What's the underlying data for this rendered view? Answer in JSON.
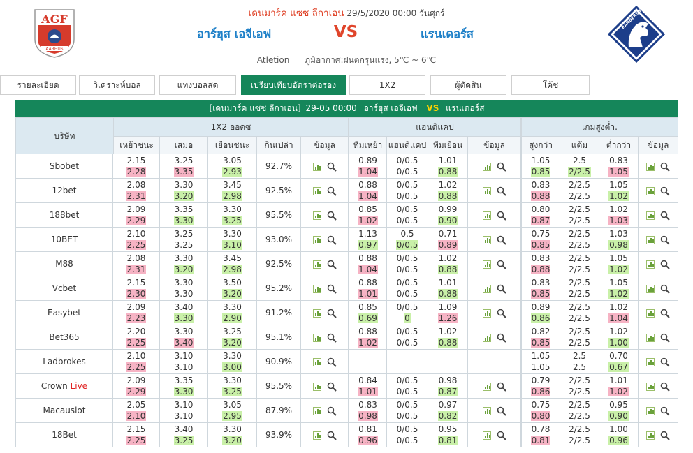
{
  "header": {
    "league": "เดนมาร์ค แซซ ลีกาเอน",
    "datetime": "29/5/2020 00:00 วันศุกร์",
    "home_team": "อาร์ฮุส เอจีเอฟ",
    "vs": "VS",
    "away_team": "แรนเดอร์ส",
    "venue": "Atletion",
    "weather": "ภูมิอากาศ:ฝนตกรุนแรง, 5℃ ~ 6℃",
    "home_logo_text": "AGF",
    "away_logo_text": "RANDERS FC"
  },
  "tabs": [
    {
      "label": "รายละเอียด"
    },
    {
      "label": "วิเคราะห์บอล"
    },
    {
      "label": "แทงบอลสด"
    },
    {
      "label": "เปรียบเทียบอัตราต่อรอง",
      "active": true
    },
    {
      "label": "1X2"
    },
    {
      "label": "ผู้ตัดสิน"
    },
    {
      "label": "โค้ช"
    }
  ],
  "match_bar": {
    "league": "[เดนมาร์ค แซซ ลีกาเอน]",
    "datetime": "29-05 00:00",
    "home": "อาร์ฮุส เอจีเอฟ",
    "vs": "VS",
    "away": "แรนเดอร์ส"
  },
  "headers": {
    "company": "บริษัท",
    "x12": "1X2 ออดซ",
    "handicap": "แฮนดิแคป",
    "overunder": "เกมสูงต่ำ.",
    "x12_cols": [
      "เหย้าชนะ",
      "เสมอ",
      "เยือนชนะ",
      "กินเปล่า",
      "ข้อมูล"
    ],
    "hdp_cols": [
      "ทีมเหย้า",
      "แฮนดิแคป",
      "ทีมเยือน",
      "ข้อมูล"
    ],
    "ou_cols": [
      "สูงกว่า",
      "แต้ม",
      "ต่ำกว่า",
      "ข้อมูล"
    ]
  },
  "colors": {
    "accent": "#15865a",
    "up": "#f6b3c4",
    "down": "#c9f0a8",
    "live": "#e02020"
  },
  "icons": [
    "chart-icon",
    "search-icon"
  ],
  "rows": [
    {
      "company": "Sbobet",
      "live": "",
      "x12": [
        [
          "2.15",
          "2.28",
          "up"
        ],
        [
          "3.25",
          "3.35",
          "up"
        ],
        [
          "3.05",
          "2.93",
          "down"
        ]
      ],
      "payout": "92.7%",
      "hdp": [
        [
          "0.89",
          "1.04",
          "up"
        ],
        [
          "0/0.5",
          "0/0.5",
          ""
        ],
        [
          "1.01",
          "0.88",
          "down"
        ]
      ],
      "ou": [
        [
          "1.05",
          "0.85",
          "down"
        ],
        [
          "2.5",
          "2/2.5",
          "down"
        ],
        [
          "0.83",
          "1.05",
          "up"
        ]
      ]
    },
    {
      "company": "12bet",
      "live": "",
      "x12": [
        [
          "2.08",
          "2.31",
          "up"
        ],
        [
          "3.30",
          "3.20",
          "down"
        ],
        [
          "3.45",
          "2.98",
          "down"
        ]
      ],
      "payout": "92.5%",
      "hdp": [
        [
          "0.88",
          "1.04",
          "up"
        ],
        [
          "0/0.5",
          "0/0.5",
          ""
        ],
        [
          "1.02",
          "0.88",
          "down"
        ]
      ],
      "ou": [
        [
          "0.83",
          "0.88",
          "up"
        ],
        [
          "2/2.5",
          "2/2.5",
          ""
        ],
        [
          "1.05",
          "1.02",
          "down"
        ]
      ]
    },
    {
      "company": "188bet",
      "live": "",
      "x12": [
        [
          "2.09",
          "2.29",
          "up"
        ],
        [
          "3.35",
          "3.30",
          "down"
        ],
        [
          "3.30",
          "3.25",
          "down"
        ]
      ],
      "payout": "95.5%",
      "hdp": [
        [
          "0.85",
          "1.02",
          "up"
        ],
        [
          "0/0.5",
          "0/0.5",
          ""
        ],
        [
          "0.99",
          "0.90",
          "down"
        ]
      ],
      "ou": [
        [
          "0.80",
          "0.87",
          "up"
        ],
        [
          "2/2.5",
          "2/2.5",
          ""
        ],
        [
          "1.02",
          "1.03",
          "up"
        ]
      ]
    },
    {
      "company": "10BET",
      "live": "",
      "x12": [
        [
          "2.10",
          "2.25",
          "up"
        ],
        [
          "3.25",
          "3.25",
          ""
        ],
        [
          "3.30",
          "3.10",
          "down"
        ]
      ],
      "payout": "93.0%",
      "hdp": [
        [
          "1.13",
          "0.97",
          "down"
        ],
        [
          "0.5",
          "0/0.5",
          "down"
        ],
        [
          "0.71",
          "0.89",
          "up"
        ]
      ],
      "ou": [
        [
          "0.75",
          "0.85",
          "up"
        ],
        [
          "2/2.5",
          "2/2.5",
          ""
        ],
        [
          "1.03",
          "0.98",
          "down"
        ]
      ]
    },
    {
      "company": "M88",
      "live": "",
      "x12": [
        [
          "2.08",
          "2.31",
          "up"
        ],
        [
          "3.30",
          "3.20",
          "down"
        ],
        [
          "3.45",
          "2.98",
          "down"
        ]
      ],
      "payout": "92.5%",
      "hdp": [
        [
          "0.88",
          "1.04",
          "up"
        ],
        [
          "0/0.5",
          "0/0.5",
          ""
        ],
        [
          "1.02",
          "0.88",
          "down"
        ]
      ],
      "ou": [
        [
          "0.83",
          "0.88",
          "up"
        ],
        [
          "2/2.5",
          "2/2.5",
          ""
        ],
        [
          "1.05",
          "1.02",
          "down"
        ]
      ]
    },
    {
      "company": "Vcbet",
      "live": "",
      "x12": [
        [
          "2.15",
          "2.30",
          "up"
        ],
        [
          "3.30",
          "3.30",
          ""
        ],
        [
          "3.50",
          "3.20",
          "down"
        ]
      ],
      "payout": "95.2%",
      "hdp": [
        [
          "0.88",
          "1.01",
          "up"
        ],
        [
          "0/0.5",
          "0/0.5",
          ""
        ],
        [
          "1.01",
          "0.88",
          "down"
        ]
      ],
      "ou": [
        [
          "0.83",
          "0.85",
          "up"
        ],
        [
          "2/2.5",
          "2/2.5",
          ""
        ],
        [
          "1.05",
          "1.02",
          "down"
        ]
      ]
    },
    {
      "company": "Easybet",
      "live": "",
      "x12": [
        [
          "2.09",
          "2.23",
          "up"
        ],
        [
          "3.40",
          "3.30",
          "down"
        ],
        [
          "3.30",
          "2.90",
          "down"
        ]
      ],
      "payout": "91.2%",
      "hdp": [
        [
          "0.85",
          "0.69",
          "down"
        ],
        [
          "0/0.5",
          "0",
          "down"
        ],
        [
          "1.09",
          "1.26",
          "up"
        ]
      ],
      "ou": [
        [
          "0.89",
          "0.86",
          "down"
        ],
        [
          "2/2.5",
          "2/2.5",
          ""
        ],
        [
          "1.02",
          "1.04",
          "up"
        ]
      ]
    },
    {
      "company": "Bet365",
      "live": "",
      "x12": [
        [
          "2.20",
          "2.25",
          "up"
        ],
        [
          "3.30",
          "3.40",
          "up"
        ],
        [
          "3.25",
          "3.20",
          "down"
        ]
      ],
      "payout": "95.1%",
      "hdp": [
        [
          "0.88",
          "1.02",
          "up"
        ],
        [
          "0/0.5",
          "0/0.5",
          ""
        ],
        [
          "1.02",
          "0.88",
          "down"
        ]
      ],
      "ou": [
        [
          "0.82",
          "0.85",
          "up"
        ],
        [
          "2/2.5",
          "2/2.5",
          ""
        ],
        [
          "1.02",
          "1.00",
          "down"
        ]
      ]
    },
    {
      "company": "Ladbrokes",
      "live": "",
      "x12": [
        [
          "2.10",
          "2.25",
          "up"
        ],
        [
          "3.10",
          "3.10",
          ""
        ],
        [
          "3.30",
          "3.00",
          "down"
        ]
      ],
      "payout": "90.9%",
      "hdp": [
        [
          "",
          "",
          ""
        ],
        [
          "",
          "",
          ""
        ],
        [
          "",
          "",
          ""
        ]
      ],
      "ou": [
        [
          "1.05",
          "1.05",
          ""
        ],
        [
          "2.5",
          "2.5",
          ""
        ],
        [
          "0.70",
          "0.67",
          "down"
        ]
      ]
    },
    {
      "company": "Crown",
      "live": "Live",
      "x12": [
        [
          "2.09",
          "2.29",
          "up"
        ],
        [
          "3.35",
          "3.30",
          "down"
        ],
        [
          "3.30",
          "3.25",
          "down"
        ]
      ],
      "payout": "95.5%",
      "hdp": [
        [
          "0.84",
          "1.01",
          "up"
        ],
        [
          "0/0.5",
          "0/0.5",
          ""
        ],
        [
          "0.98",
          "0.87",
          "down"
        ]
      ],
      "ou": [
        [
          "0.79",
          "0.86",
          "up"
        ],
        [
          "2/2.5",
          "2/2.5",
          ""
        ],
        [
          "1.01",
          "1.02",
          "up"
        ]
      ]
    },
    {
      "company": "Macauslot",
      "live": "",
      "x12": [
        [
          "2.05",
          "2.10",
          "up"
        ],
        [
          "3.10",
          "3.10",
          ""
        ],
        [
          "3.05",
          "2.95",
          "down"
        ]
      ],
      "payout": "87.9%",
      "hdp": [
        [
          "0.83",
          "0.98",
          "up"
        ],
        [
          "0/0.5",
          "0/0.5",
          ""
        ],
        [
          "0.97",
          "0.82",
          "down"
        ]
      ],
      "ou": [
        [
          "0.75",
          "0.80",
          "up"
        ],
        [
          "2/2.5",
          "2/2.5",
          ""
        ],
        [
          "0.95",
          "0.90",
          "down"
        ]
      ]
    },
    {
      "company": "18Bet",
      "live": "",
      "x12": [
        [
          "2.15",
          "2.25",
          "up"
        ],
        [
          "3.40",
          "3.25",
          "down"
        ],
        [
          "3.30",
          "3.20",
          "down"
        ]
      ],
      "payout": "93.9%",
      "hdp": [
        [
          "0.81",
          "0.96",
          "up"
        ],
        [
          "0/0.5",
          "0/0.5",
          ""
        ],
        [
          "0.95",
          "0.81",
          "down"
        ]
      ],
      "ou": [
        [
          "0.78",
          "0.81",
          "up"
        ],
        [
          "2/2.5",
          "2/2.5",
          ""
        ],
        [
          "1.00",
          "0.96",
          "down"
        ]
      ]
    }
  ]
}
